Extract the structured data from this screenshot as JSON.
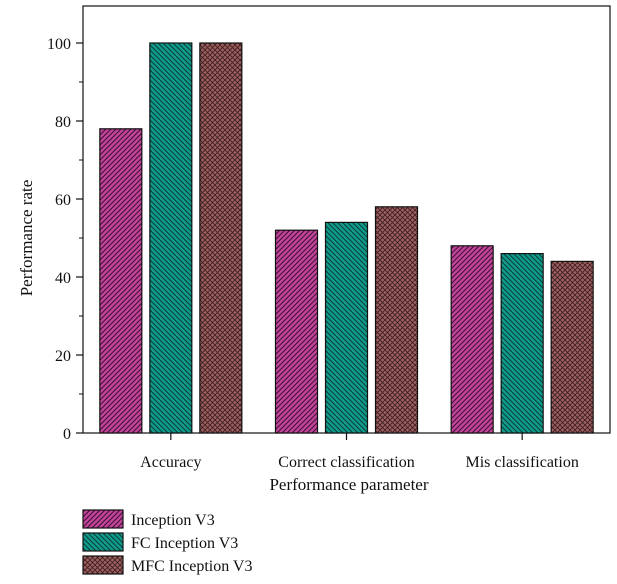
{
  "chart_data": {
    "type": "bar",
    "categories": [
      "Accuracy",
      "Correct classification",
      "Mis classification"
    ],
    "series": [
      {
        "name": "Inception V3",
        "values": [
          78,
          52,
          48
        ],
        "color": "#c2439a",
        "pattern": "diagonal"
      },
      {
        "name": "FC Inception V3",
        "values": [
          100,
          54,
          46
        ],
        "color": "#0f9c8c",
        "pattern": "diagonal-reverse"
      },
      {
        "name": "MFC Inception V3",
        "values": [
          100,
          58,
          44
        ],
        "color": "#a06060",
        "pattern": "crosshatch"
      }
    ],
    "xlabel": "Performance parameter",
    "ylabel": "Performance rate",
    "ylim": [
      0,
      100
    ],
    "yticks": [
      0,
      20,
      40,
      60,
      80,
      100
    ],
    "grid": false,
    "legend_position": "bottom-left"
  }
}
